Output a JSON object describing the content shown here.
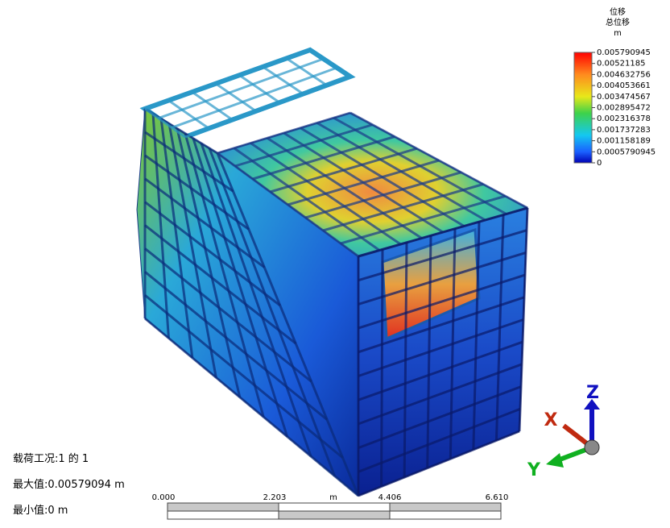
{
  "legend": {
    "title": "位移",
    "subtitle": "总位移",
    "unit": "m",
    "labels": [
      "0.005790945",
      "0.00521185",
      "0.004632756",
      "0.004053661",
      "0.003474567",
      "0.002895472",
      "0.002316378",
      "0.001737283",
      "0.001158189",
      "0.0005790945",
      "0"
    ]
  },
  "info": {
    "load_case": "载荷工况:1 的 1",
    "max": "最大值:0.00579094 m",
    "min": "最小值:0 m"
  },
  "scale_bar": {
    "labels": [
      "0.000",
      "2.203",
      "4.406",
      "6.610"
    ],
    "unit": "m"
  },
  "triad": {
    "x": "X",
    "y": "Y",
    "z": "Z"
  }
}
